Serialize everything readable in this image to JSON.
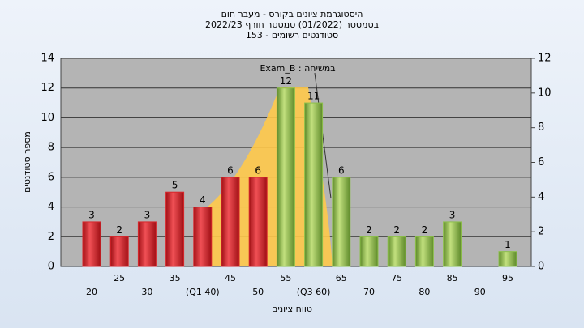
{
  "chart_data": {
    "type": "bar",
    "title": [
      "היסטוגרמת ציונים בקורס - מעבר חום",
      "בסמסטר  (01/2022)  סמסטר חורף 2022/23",
      "סטודנטים רשומים - 153"
    ],
    "annotation": "במשיחה : Exam_B",
    "xlabel": "טווח ציונים",
    "ylabel": "מספר סטודנטים",
    "categories": [
      "20",
      "25",
      "30",
      "35",
      "(Q1 40)",
      "45",
      "50",
      "55",
      "(Q3 60)",
      "65",
      "70",
      "75",
      "80",
      "85",
      "90",
      "95"
    ],
    "values": [
      3,
      2,
      3,
      5,
      4,
      6,
      6,
      12,
      11,
      6,
      2,
      2,
      2,
      3,
      0,
      1
    ],
    "colors": [
      "#d8262b",
      "#d8262b",
      "#d8262b",
      "#d8262b",
      "#d8262b",
      "#d8262b",
      "#d8262b",
      "#8cc04a",
      "#8cc04a",
      "#8cc04a",
      "#8cc04a",
      "#8cc04a",
      "#8cc04a",
      "#8cc04a",
      "#8cc04a",
      "#8cc04a"
    ],
    "ylim": [
      0,
      14
    ],
    "yticks": [
      0,
      2,
      4,
      6,
      8,
      10,
      12,
      14
    ],
    "y2lim": [
      0,
      12
    ],
    "y2ticks": [
      0,
      2,
      4,
      6,
      8,
      10,
      12
    ],
    "grid": true
  }
}
